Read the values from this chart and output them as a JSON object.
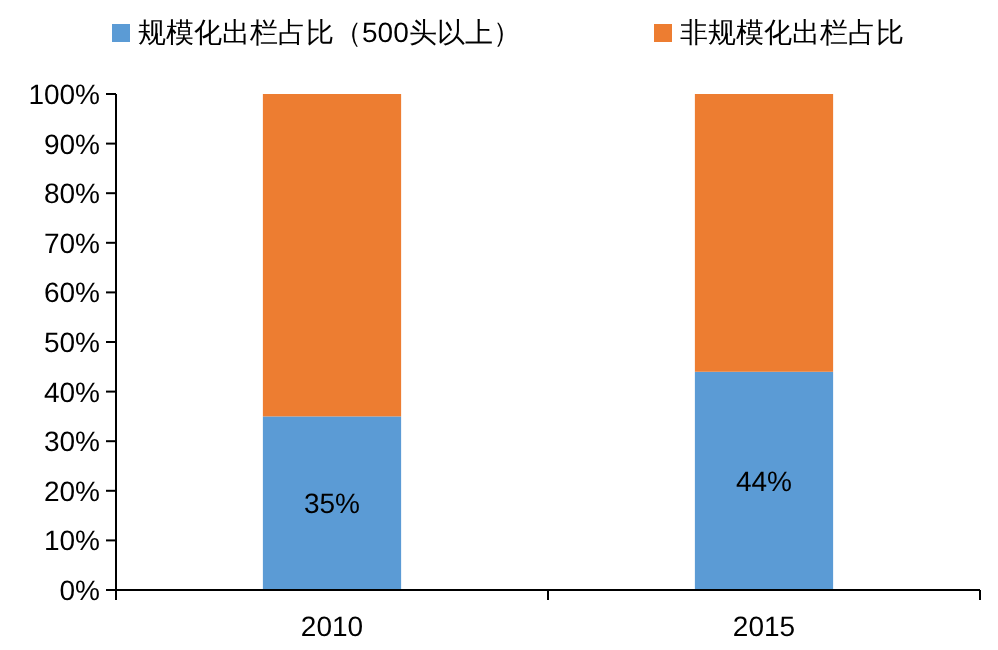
{
  "chart_data": {
    "type": "bar",
    "stacked": true,
    "categories": [
      "2010",
      "2015"
    ],
    "series": [
      {
        "name": "规模化出栏占比（500头以上）",
        "color": "#5b9bd5",
        "values": [
          35,
          44
        ],
        "value_labels": [
          "35%",
          "44%"
        ]
      },
      {
        "name": "非规模化出栏占比",
        "color": "#ed7d31",
        "values": [
          65,
          56
        ]
      }
    ],
    "ylim": [
      0,
      100
    ],
    "yticks": [
      {
        "value": 0,
        "label": "0%"
      },
      {
        "value": 10,
        "label": "10%"
      },
      {
        "value": 20,
        "label": "20%"
      },
      {
        "value": 30,
        "label": "30%"
      },
      {
        "value": 40,
        "label": "40%"
      },
      {
        "value": 50,
        "label": "50%"
      },
      {
        "value": 60,
        "label": "60%"
      },
      {
        "value": 70,
        "label": "70%"
      },
      {
        "value": 80,
        "label": "80%"
      },
      {
        "value": 90,
        "label": "90%"
      },
      {
        "value": 100,
        "label": "100%"
      }
    ],
    "grid": false,
    "legend": "top"
  }
}
